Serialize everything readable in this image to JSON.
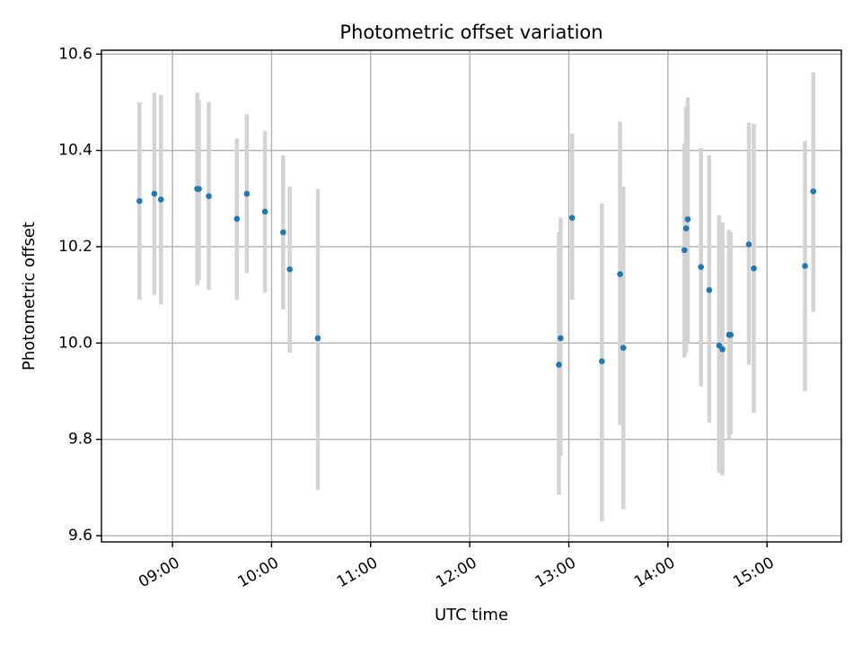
{
  "chart_data": {
    "type": "scatter",
    "title": "Photometric offset variation",
    "xlabel": "UTC time",
    "ylabel": "Photometric offset",
    "xlim": [
      "08:17",
      "15:45"
    ],
    "ylim": [
      9.587,
      10.608
    ],
    "x_ticks": [
      "09:00",
      "10:00",
      "11:00",
      "12:00",
      "13:00",
      "14:00",
      "15:00"
    ],
    "y_ticks": [
      "9.6",
      "9.8",
      "10.0",
      "10.2",
      "10.4",
      "10.6"
    ],
    "grid": true,
    "series": [
      {
        "name": "Photometric offset",
        "color": "#1f77b4",
        "errorbar_color": "#d3d3d3",
        "points": [
          {
            "time": "08:40",
            "value": 10.295,
            "low": 10.09,
            "high": 10.5
          },
          {
            "time": "08:49",
            "value": 10.31,
            "low": 10.1,
            "high": 10.52
          },
          {
            "time": "08:53",
            "value": 10.298,
            "low": 10.08,
            "high": 10.515
          },
          {
            "time": "09:15",
            "value": 10.32,
            "low": 10.12,
            "high": 10.52
          },
          {
            "time": "09:16",
            "value": 10.32,
            "low": 10.13,
            "high": 10.505
          },
          {
            "time": "09:22",
            "value": 10.305,
            "low": 10.11,
            "high": 10.5
          },
          {
            "time": "09:39",
            "value": 10.258,
            "low": 10.09,
            "high": 10.425
          },
          {
            "time": "09:45",
            "value": 10.31,
            "low": 10.145,
            "high": 10.475
          },
          {
            "time": "09:56",
            "value": 10.273,
            "low": 10.105,
            "high": 10.44
          },
          {
            "time": "10:07",
            "value": 10.23,
            "low": 10.07,
            "high": 10.39
          },
          {
            "time": "10:11",
            "value": 10.153,
            "low": 9.98,
            "high": 10.325
          },
          {
            "time": "10:28",
            "value": 10.01,
            "low": 9.695,
            "high": 10.32
          },
          {
            "time": "12:54",
            "value": 9.955,
            "low": 9.685,
            "high": 10.23
          },
          {
            "time": "12:55",
            "value": 10.01,
            "low": 9.765,
            "high": 10.26
          },
          {
            "time": "13:02",
            "value": 10.26,
            "low": 10.09,
            "high": 10.435
          },
          {
            "time": "13:20",
            "value": 9.962,
            "low": 9.63,
            "high": 10.29
          },
          {
            "time": "13:31",
            "value": 10.143,
            "low": 9.83,
            "high": 10.46
          },
          {
            "time": "13:33",
            "value": 9.99,
            "low": 9.655,
            "high": 10.325
          },
          {
            "time": "14:10",
            "value": 10.193,
            "low": 9.97,
            "high": 10.415
          },
          {
            "time": "14:11",
            "value": 10.238,
            "low": 9.98,
            "high": 10.49
          },
          {
            "time": "14:12",
            "value": 10.257,
            "low": 10.0,
            "high": 10.51
          },
          {
            "time": "14:20",
            "value": 10.158,
            "low": 9.91,
            "high": 10.405
          },
          {
            "time": "14:25",
            "value": 10.11,
            "low": 9.835,
            "high": 10.39
          },
          {
            "time": "14:31",
            "value": 9.995,
            "low": 9.73,
            "high": 10.265
          },
          {
            "time": "14:33",
            "value": 9.987,
            "low": 9.725,
            "high": 10.25
          },
          {
            "time": "14:37",
            "value": 10.017,
            "low": 9.8,
            "high": 10.235
          },
          {
            "time": "14:38",
            "value": 10.017,
            "low": 9.81,
            "high": 10.23
          },
          {
            "time": "14:49",
            "value": 10.205,
            "low": 9.955,
            "high": 10.458
          },
          {
            "time": "14:52",
            "value": 10.155,
            "low": 9.855,
            "high": 10.455
          },
          {
            "time": "15:23",
            "value": 10.16,
            "low": 9.9,
            "high": 10.42
          },
          {
            "time": "15:28",
            "value": 10.315,
            "low": 10.065,
            "high": 10.562
          }
        ]
      }
    ]
  }
}
